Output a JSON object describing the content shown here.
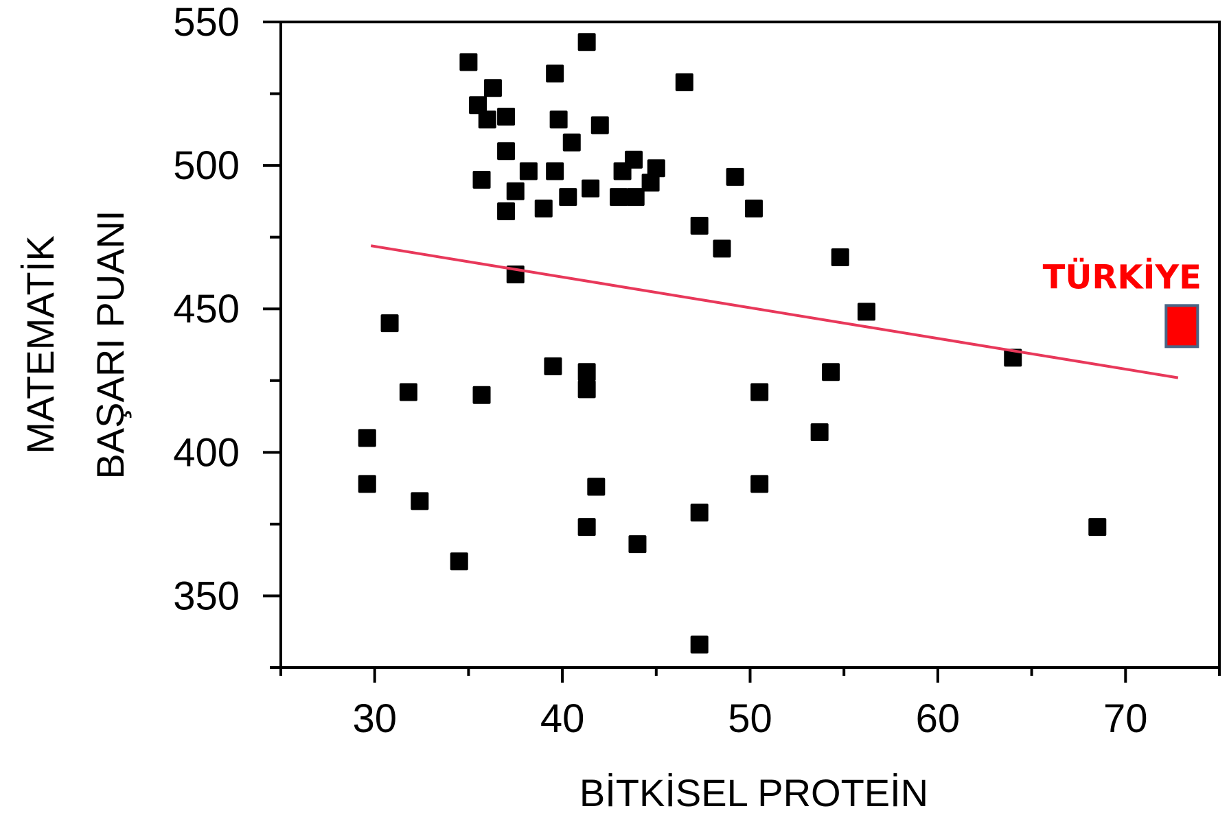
{
  "chart_data": {
    "type": "scatter",
    "xlabel": "BİTKİSEL PROTEİN",
    "ylabel_lines": [
      "MATEMATİK",
      "BAŞARI PUANI"
    ],
    "xlim": [
      25,
      75
    ],
    "ylim": [
      325,
      550
    ],
    "xticks": [
      30,
      40,
      50,
      60,
      70
    ],
    "yticks": [
      350,
      400,
      450,
      500,
      550
    ],
    "grid": false,
    "point_color": "#000000",
    "trend_color": "#e8385a",
    "highlight_color": "#ff0000",
    "highlight_border_color": "#4a6585",
    "trendline": {
      "x": [
        29.8,
        72.8
      ],
      "y": [
        472,
        426
      ]
    },
    "highlight": {
      "label": "TÜRKİYE",
      "x": 73,
      "y": 444
    },
    "points": [
      {
        "x": 35.0,
        "y": 536
      },
      {
        "x": 41.3,
        "y": 543
      },
      {
        "x": 35.5,
        "y": 521
      },
      {
        "x": 36.3,
        "y": 527
      },
      {
        "x": 36.0,
        "y": 516
      },
      {
        "x": 37.0,
        "y": 517
      },
      {
        "x": 39.6,
        "y": 532
      },
      {
        "x": 39.8,
        "y": 516
      },
      {
        "x": 42.0,
        "y": 514
      },
      {
        "x": 46.5,
        "y": 529
      },
      {
        "x": 40.5,
        "y": 508
      },
      {
        "x": 37.0,
        "y": 505
      },
      {
        "x": 38.2,
        "y": 498
      },
      {
        "x": 39.6,
        "y": 498
      },
      {
        "x": 43.2,
        "y": 498
      },
      {
        "x": 43.8,
        "y": 502
      },
      {
        "x": 45.0,
        "y": 499
      },
      {
        "x": 49.2,
        "y": 496
      },
      {
        "x": 35.7,
        "y": 495
      },
      {
        "x": 37.5,
        "y": 491
      },
      {
        "x": 41.5,
        "y": 492
      },
      {
        "x": 44.7,
        "y": 494
      },
      {
        "x": 40.3,
        "y": 489
      },
      {
        "x": 43.0,
        "y": 489
      },
      {
        "x": 43.9,
        "y": 489
      },
      {
        "x": 37.0,
        "y": 484
      },
      {
        "x": 39.0,
        "y": 485
      },
      {
        "x": 50.2,
        "y": 485
      },
      {
        "x": 47.3,
        "y": 479
      },
      {
        "x": 48.5,
        "y": 471
      },
      {
        "x": 54.8,
        "y": 468
      },
      {
        "x": 37.5,
        "y": 462
      },
      {
        "x": 56.2,
        "y": 449
      },
      {
        "x": 30.8,
        "y": 445
      },
      {
        "x": 64.0,
        "y": 433
      },
      {
        "x": 39.5,
        "y": 430
      },
      {
        "x": 41.3,
        "y": 428
      },
      {
        "x": 54.3,
        "y": 428
      },
      {
        "x": 41.3,
        "y": 422
      },
      {
        "x": 31.8,
        "y": 421
      },
      {
        "x": 35.7,
        "y": 420
      },
      {
        "x": 50.5,
        "y": 421
      },
      {
        "x": 53.7,
        "y": 407
      },
      {
        "x": 29.6,
        "y": 405
      },
      {
        "x": 29.6,
        "y": 389
      },
      {
        "x": 50.5,
        "y": 389
      },
      {
        "x": 41.8,
        "y": 388
      },
      {
        "x": 32.4,
        "y": 383
      },
      {
        "x": 47.3,
        "y": 379
      },
      {
        "x": 41.3,
        "y": 374
      },
      {
        "x": 68.5,
        "y": 374
      },
      {
        "x": 44.0,
        "y": 368
      },
      {
        "x": 34.5,
        "y": 362
      },
      {
        "x": 47.3,
        "y": 333
      }
    ]
  }
}
